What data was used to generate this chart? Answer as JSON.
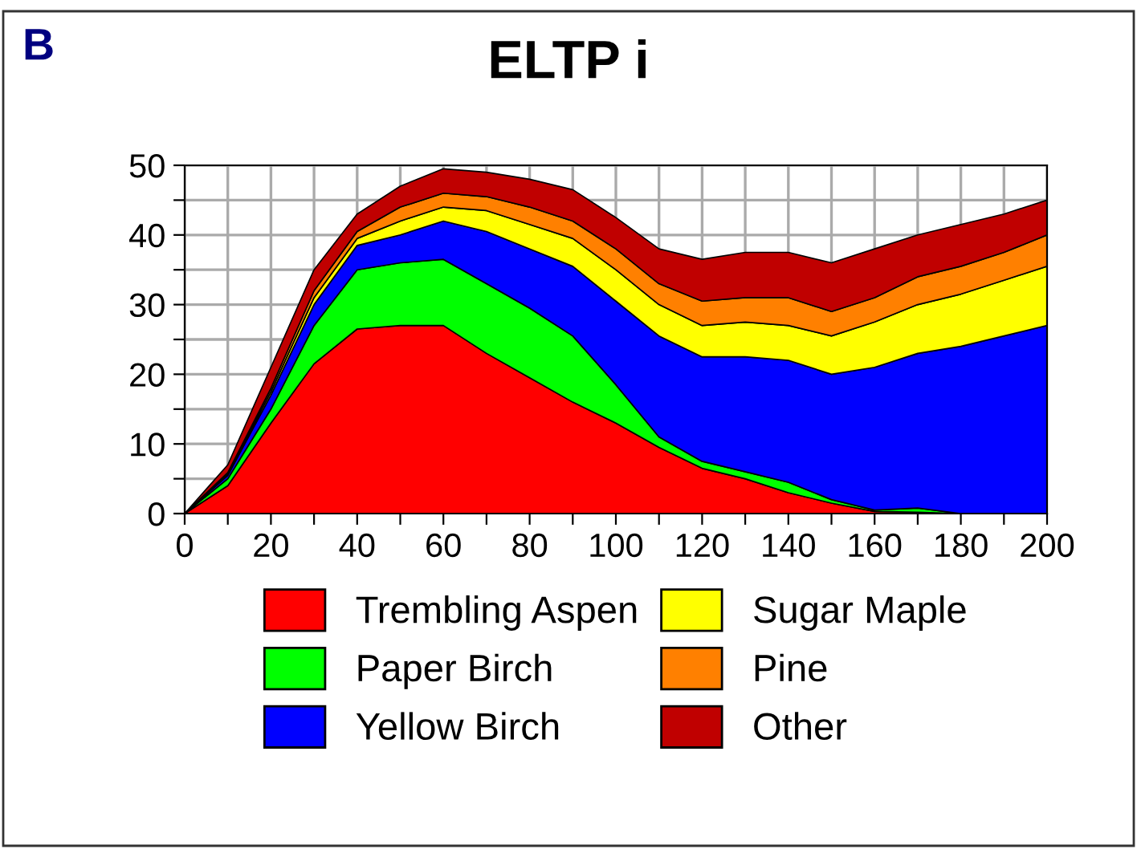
{
  "chart_data": {
    "type": "area",
    "stacked": true,
    "title": "ELTP i",
    "annotations": [
      "B"
    ],
    "x": [
      0,
      10,
      20,
      30,
      40,
      50,
      60,
      70,
      80,
      90,
      100,
      110,
      120,
      130,
      140,
      150,
      160,
      170,
      180,
      190,
      200
    ],
    "series": [
      {
        "name": "Trembling Aspen",
        "color": "#ff0000",
        "values": [
          0,
          4,
          13,
          21.5,
          26.5,
          27,
          27,
          23,
          19.5,
          16,
          13,
          9.5,
          6.5,
          5,
          3,
          1.5,
          0.3,
          0.2,
          0,
          0,
          0
        ]
      },
      {
        "name": "Paper Birch",
        "color": "#00ff00",
        "values": [
          0,
          1,
          2,
          5.5,
          8.5,
          9,
          9.5,
          10,
          10,
          9.5,
          5.5,
          1.5,
          1,
          1,
          1.5,
          0.5,
          0.2,
          0.6,
          0,
          0,
          0
        ]
      },
      {
        "name": "Yellow Birch",
        "color": "#0000ff",
        "values": [
          0,
          0.5,
          2,
          3,
          3.5,
          4,
          5.5,
          7.5,
          8.5,
          10,
          12,
          14.5,
          15,
          16.5,
          17.5,
          18,
          20.5,
          22.2,
          24,
          25.5,
          27
        ]
      },
      {
        "name": "Sugar Maple",
        "color": "#ffff00",
        "values": [
          0,
          0.2,
          0.5,
          1,
          1,
          2,
          2,
          3,
          3.5,
          4,
          4.5,
          4.5,
          4.5,
          5,
          5,
          5.5,
          6.5,
          7,
          7.5,
          8,
          8.5
        ]
      },
      {
        "name": "Pine",
        "color": "#ff8000",
        "values": [
          0,
          0.2,
          0.5,
          1,
          1,
          2,
          2,
          2,
          2.5,
          2.5,
          3,
          3,
          3.5,
          3.5,
          4,
          3.5,
          3.5,
          4,
          4,
          4,
          4.5
        ]
      },
      {
        "name": "Other",
        "color": "#c00000",
        "values": [
          0,
          1.1,
          3,
          3,
          2.5,
          3,
          3.5,
          3.5,
          4,
          4.5,
          4.5,
          5,
          6,
          6.5,
          6.5,
          7,
          7,
          6,
          6,
          5.5,
          5
        ]
      }
    ],
    "xlim": [
      0,
      200
    ],
    "xticks": [
      0,
      {
        "value": 10,
        "label": null
      },
      20,
      {
        "value": 30,
        "label": null
      },
      40,
      {
        "value": 50,
        "label": null
      },
      60,
      {
        "value": 70,
        "label": null
      },
      80,
      {
        "value": 90,
        "label": null
      },
      100,
      {
        "value": 110,
        "label": null
      },
      120,
      {
        "value": 130,
        "label": null
      },
      140,
      {
        "value": 150,
        "label": null
      },
      160,
      {
        "value": 170,
        "label": null
      },
      180,
      {
        "value": 190,
        "label": null
      },
      200
    ],
    "ylim": [
      0,
      50
    ],
    "yticks": [
      0,
      {
        "value": 5,
        "label": null
      },
      10,
      {
        "value": 15,
        "label": null
      },
      20,
      {
        "value": 25,
        "label": null
      },
      30,
      {
        "value": 35,
        "label": null
      },
      40,
      {
        "value": 45,
        "label": null
      },
      50
    ],
    "grid": true,
    "legend": "bottom"
  }
}
